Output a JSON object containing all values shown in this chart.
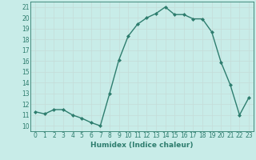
{
  "x": [
    0,
    1,
    2,
    3,
    4,
    5,
    6,
    7,
    8,
    9,
    10,
    11,
    12,
    13,
    14,
    15,
    16,
    17,
    18,
    19,
    20,
    21,
    22,
    23
  ],
  "y": [
    11.3,
    11.1,
    11.5,
    11.5,
    11.0,
    10.7,
    10.3,
    10.0,
    13.0,
    16.1,
    18.3,
    19.4,
    20.0,
    20.4,
    21.0,
    20.3,
    20.3,
    19.9,
    19.9,
    18.7,
    15.9,
    13.8,
    11.0,
    12.6
  ],
  "line_color": "#2e7d6e",
  "bg_color": "#c8ece8",
  "grid_color": "#c4dcd8",
  "xlabel": "Humidex (Indice chaleur)",
  "xlim": [
    -0.5,
    23.5
  ],
  "ylim": [
    9.5,
    21.5
  ],
  "yticks": [
    10,
    11,
    12,
    13,
    14,
    15,
    16,
    17,
    18,
    19,
    20,
    21
  ],
  "xticks": [
    0,
    1,
    2,
    3,
    4,
    5,
    6,
    7,
    8,
    9,
    10,
    11,
    12,
    13,
    14,
    15,
    16,
    17,
    18,
    19,
    20,
    21,
    22,
    23
  ],
  "tick_color": "#2e7d6e",
  "label_color": "#2e7d6e",
  "spine_color": "#2e7d6e",
  "marker": "D",
  "markersize": 2.0,
  "linewidth": 1.0,
  "xlabel_fontsize": 6.5,
  "tick_fontsize": 5.5
}
